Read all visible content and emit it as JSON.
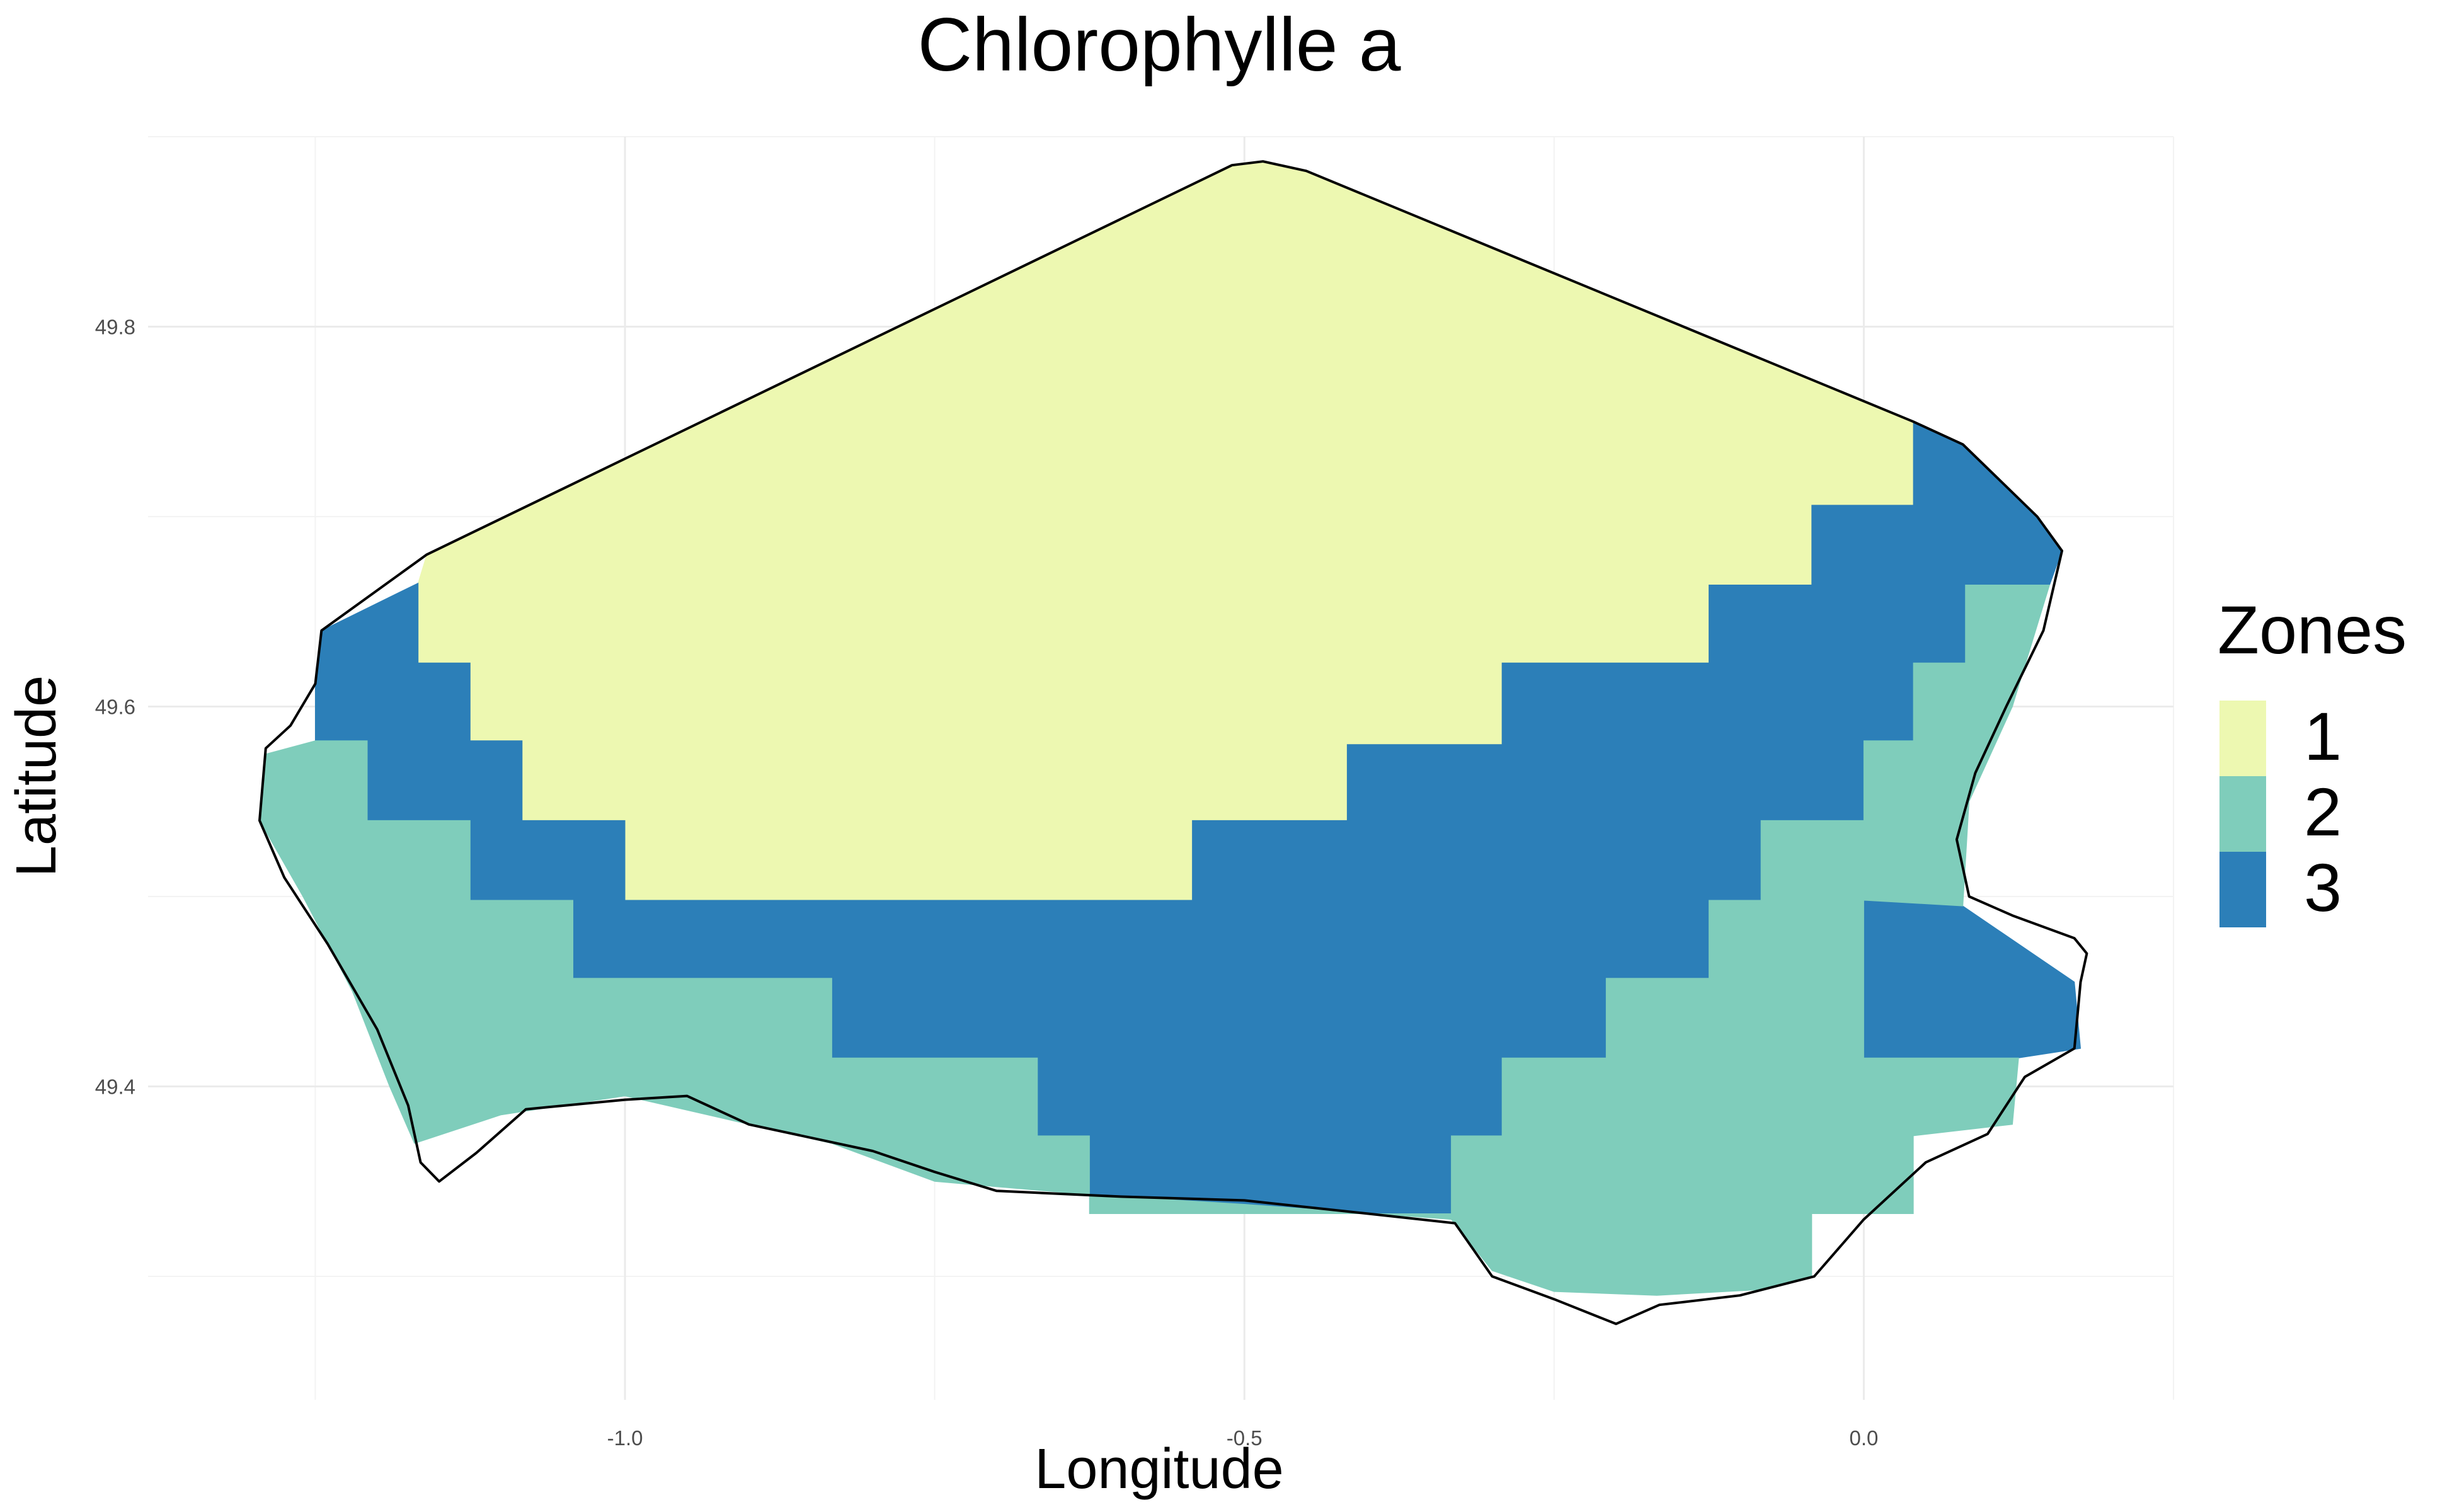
{
  "chart_data": {
    "type": "heatmap",
    "title": "Chlorophylle a",
    "xlabel": "Longitude",
    "ylabel": "Latitude",
    "xlim": [
      -1.385,
      0.25
    ],
    "ylim": [
      49.235,
      49.9
    ],
    "x_ticks": [
      -1.0,
      -0.5,
      0.0
    ],
    "x_tick_labels": [
      "-1.0",
      "-0.5",
      "0.0"
    ],
    "y_ticks": [
      49.4,
      49.6,
      49.8
    ],
    "y_tick_labels": [
      "49.4",
      "49.6",
      "49.8"
    ],
    "grid": true,
    "legend": {
      "title": "Zones",
      "placement": "right",
      "entries": [
        {
          "label": "1",
          "color": "#edf8b1"
        },
        {
          "label": "2",
          "color": "#7fcdbb"
        },
        {
          "label": "3",
          "color": "#2c7fb8"
        }
      ]
    },
    "zones": [
      {
        "zone": "1",
        "color": "#edf8b1",
        "polygon_lonlat": [
          [
            -1.16,
            49.68
          ],
          [
            -0.51,
            49.885
          ],
          [
            -0.485,
            49.887
          ],
          [
            -0.45,
            49.882
          ],
          [
            0.04,
            49.75
          ],
          [
            0.04,
            49.706
          ],
          [
            -0.042,
            49.706
          ],
          [
            -0.042,
            49.664
          ],
          [
            -0.125,
            49.664
          ],
          [
            -0.125,
            49.623
          ],
          [
            -0.292,
            49.623
          ],
          [
            -0.292,
            49.58
          ],
          [
            -0.417,
            49.58
          ],
          [
            -0.417,
            49.54
          ],
          [
            -0.542,
            49.54
          ],
          [
            -0.542,
            49.498
          ],
          [
            -1.0,
            49.498
          ],
          [
            -1.0,
            49.54
          ],
          [
            -1.083,
            49.54
          ],
          [
            -1.083,
            49.582
          ],
          [
            -1.125,
            49.582
          ],
          [
            -1.125,
            49.623
          ],
          [
            -1.167,
            49.623
          ],
          [
            -1.167,
            49.665
          ]
        ]
      },
      {
        "zone": "3",
        "color": "#2c7fb8",
        "polygon_lonlat": [
          [
            -1.245,
            49.64
          ],
          [
            -1.167,
            49.665
          ],
          [
            -1.167,
            49.623
          ],
          [
            -1.125,
            49.623
          ],
          [
            -1.125,
            49.582
          ],
          [
            -1.083,
            49.582
          ],
          [
            -1.083,
            49.54
          ],
          [
            -1.0,
            49.54
          ],
          [
            -1.0,
            49.498
          ],
          [
            -0.542,
            49.498
          ],
          [
            -0.542,
            49.54
          ],
          [
            -0.417,
            49.54
          ],
          [
            -0.417,
            49.58
          ],
          [
            -0.292,
            49.58
          ],
          [
            -0.292,
            49.623
          ],
          [
            -0.125,
            49.623
          ],
          [
            -0.125,
            49.664
          ],
          [
            -0.042,
            49.664
          ],
          [
            -0.042,
            49.706
          ],
          [
            0.04,
            49.706
          ],
          [
            0.04,
            49.75
          ],
          [
            0.08,
            49.738
          ],
          [
            0.14,
            49.7
          ],
          [
            0.16,
            49.682
          ],
          [
            0.15,
            49.664
          ],
          [
            0.082,
            49.664
          ],
          [
            0.082,
            49.623
          ],
          [
            0.04,
            49.623
          ],
          [
            0.04,
            49.582
          ],
          [
            0.0,
            49.582
          ],
          [
            0.0,
            49.54
          ],
          [
            -0.083,
            49.54
          ],
          [
            -0.083,
            49.498
          ],
          [
            -0.125,
            49.498
          ],
          [
            -0.125,
            49.457
          ],
          [
            -0.208,
            49.457
          ],
          [
            -0.208,
            49.415
          ],
          [
            -0.292,
            49.415
          ],
          [
            -0.292,
            49.374
          ],
          [
            -0.333,
            49.374
          ],
          [
            -0.333,
            49.333
          ],
          [
            -0.625,
            49.333
          ],
          [
            -0.625,
            49.374
          ],
          [
            -0.667,
            49.374
          ],
          [
            -0.667,
            49.415
          ],
          [
            -0.833,
            49.415
          ],
          [
            -0.833,
            49.457
          ],
          [
            -1.042,
            49.457
          ],
          [
            -1.042,
            49.498
          ],
          [
            -1.125,
            49.498
          ],
          [
            -1.125,
            49.54
          ],
          [
            -1.208,
            49.54
          ],
          [
            -1.208,
            49.582
          ],
          [
            -1.25,
            49.582
          ],
          [
            -1.25,
            49.612
          ]
        ]
      },
      {
        "zone": "3",
        "color": "#2c7fb8",
        "polygon_lonlat": [
          [
            0.0,
            49.498
          ],
          [
            0.08,
            49.495
          ],
          [
            0.17,
            49.455
          ],
          [
            0.175,
            49.42
          ],
          [
            0.125,
            49.415
          ],
          [
            0.0,
            49.415
          ]
        ]
      },
      {
        "zone": "2",
        "color": "#7fcdbb",
        "polygon_lonlat": [
          [
            -1.25,
            49.582
          ],
          [
            -1.208,
            49.582
          ],
          [
            -1.208,
            49.54
          ],
          [
            -1.125,
            49.54
          ],
          [
            -1.125,
            49.498
          ],
          [
            -1.042,
            49.498
          ],
          [
            -1.042,
            49.457
          ],
          [
            -0.833,
            49.457
          ],
          [
            -0.833,
            49.415
          ],
          [
            -0.667,
            49.415
          ],
          [
            -0.667,
            49.374
          ],
          [
            -0.625,
            49.374
          ],
          [
            -0.625,
            49.333
          ],
          [
            -0.333,
            49.333
          ],
          [
            -0.333,
            49.374
          ],
          [
            -0.292,
            49.374
          ],
          [
            -0.292,
            49.415
          ],
          [
            -0.208,
            49.415
          ],
          [
            -0.208,
            49.457
          ],
          [
            -0.125,
            49.457
          ],
          [
            -0.125,
            49.498
          ],
          [
            -0.083,
            49.498
          ],
          [
            -0.083,
            49.54
          ],
          [
            0.0,
            49.54
          ],
          [
            0.0,
            49.582
          ],
          [
            0.04,
            49.582
          ],
          [
            0.04,
            49.623
          ],
          [
            0.082,
            49.623
          ],
          [
            0.082,
            49.664
          ],
          [
            0.15,
            49.664
          ],
          [
            0.12,
            49.6
          ],
          [
            0.085,
            49.55
          ],
          [
            0.08,
            49.495
          ],
          [
            0.0,
            49.498
          ],
          [
            0.0,
            49.415
          ],
          [
            0.125,
            49.415
          ],
          [
            0.12,
            49.38
          ],
          [
            0.04,
            49.374
          ],
          [
            0.04,
            49.333
          ],
          [
            -0.042,
            49.333
          ],
          [
            -0.042,
            49.3
          ],
          [
            -0.083,
            49.293
          ],
          [
            -0.167,
            49.29
          ],
          [
            -0.25,
            49.292
          ],
          [
            -0.3,
            49.303
          ],
          [
            -0.333,
            49.33
          ],
          [
            -0.5,
            49.338
          ],
          [
            -0.625,
            49.343
          ],
          [
            -0.75,
            49.35
          ],
          [
            -0.833,
            49.37
          ],
          [
            -0.9,
            49.38
          ],
          [
            -1.0,
            49.395
          ],
          [
            -1.1,
            49.385
          ],
          [
            -1.17,
            49.37
          ],
          [
            -1.19,
            49.4
          ],
          [
            -1.22,
            49.45
          ],
          [
            -1.26,
            49.5
          ],
          [
            -1.295,
            49.54
          ],
          [
            -1.29,
            49.575
          ]
        ]
      }
    ],
    "coastline_lonlat": [
      [
        -1.245,
        49.64
      ],
      [
        -1.16,
        49.68
      ],
      [
        -0.51,
        49.885
      ],
      [
        -0.485,
        49.887
      ],
      [
        -0.45,
        49.882
      ],
      [
        0.04,
        49.75
      ],
      [
        0.08,
        49.738
      ],
      [
        0.14,
        49.7
      ],
      [
        0.16,
        49.682
      ],
      [
        0.145,
        49.64
      ],
      [
        0.115,
        49.6
      ],
      [
        0.09,
        49.565
      ],
      [
        0.075,
        49.53
      ],
      [
        0.085,
        49.5
      ],
      [
        0.12,
        49.49
      ],
      [
        0.17,
        49.478
      ],
      [
        0.18,
        49.47
      ],
      [
        0.175,
        49.455
      ],
      [
        0.17,
        49.42
      ],
      [
        0.13,
        49.405
      ],
      [
        0.1,
        49.375
      ],
      [
        0.05,
        49.36
      ],
      [
        0.0,
        49.33
      ],
      [
        -0.04,
        49.3
      ],
      [
        -0.1,
        49.29
      ],
      [
        -0.165,
        49.285
      ],
      [
        -0.2,
        49.275
      ],
      [
        -0.25,
        49.288
      ],
      [
        -0.3,
        49.3
      ],
      [
        -0.33,
        49.328
      ],
      [
        -0.4,
        49.333
      ],
      [
        -0.5,
        49.34
      ],
      [
        -0.6,
        49.342
      ],
      [
        -0.7,
        49.345
      ],
      [
        -0.75,
        49.355
      ],
      [
        -0.8,
        49.366
      ],
      [
        -0.9,
        49.38
      ],
      [
        -0.95,
        49.395
      ],
      [
        -1.0,
        49.393
      ],
      [
        -1.08,
        49.388
      ],
      [
        -1.12,
        49.365
      ],
      [
        -1.15,
        49.35
      ],
      [
        -1.165,
        49.36
      ],
      [
        -1.175,
        49.39
      ],
      [
        -1.2,
        49.43
      ],
      [
        -1.24,
        49.475
      ],
      [
        -1.275,
        49.51
      ],
      [
        -1.295,
        49.54
      ],
      [
        -1.29,
        49.578
      ],
      [
        -1.27,
        49.59
      ],
      [
        -1.25,
        49.612
      ],
      [
        -1.245,
        49.64
      ]
    ]
  }
}
